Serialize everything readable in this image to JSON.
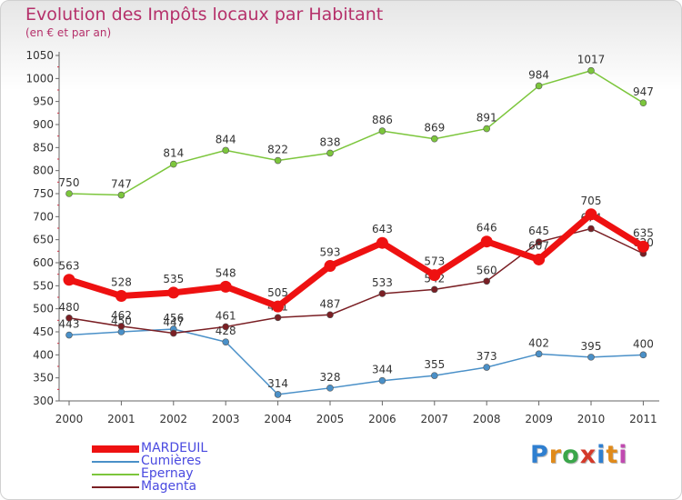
{
  "header": {
    "title": "Evolution des Impôts locaux par Habitant",
    "subtitle": "(en € et par an)"
  },
  "logo": {
    "text": "Proxiti",
    "colors": [
      "#2f7fd0",
      "#e08a1a",
      "#3aa64a",
      "#d43a2a",
      "#2f7fd0",
      "#e08a1a",
      "#c04ab0"
    ]
  },
  "chart_data": {
    "type": "line",
    "x": [
      "2000",
      "2001",
      "2002",
      "2003",
      "2004",
      "2005",
      "2006",
      "2007",
      "2008",
      "2009",
      "2010",
      "2011"
    ],
    "ylim": [
      300,
      1050
    ],
    "yticks": [
      300,
      350,
      400,
      450,
      500,
      550,
      600,
      650,
      700,
      750,
      800,
      850,
      900,
      950,
      1000,
      1050
    ],
    "grid": false,
    "legend_position": "bottom-left",
    "series": [
      {
        "name": "MARDEUIL",
        "color": "#ee1111",
        "emphasis": true,
        "values": [
          563,
          528,
          535,
          548,
          505,
          593,
          643,
          573,
          646,
          607,
          705,
          635
        ]
      },
      {
        "name": "Cumières",
        "color": "#4a90c8",
        "values": [
          443,
          450,
          456,
          428,
          314,
          328,
          344,
          355,
          373,
          402,
          395,
          400
        ]
      },
      {
        "name": "Epernay",
        "color": "#7cc63c",
        "values": [
          750,
          747,
          814,
          844,
          822,
          838,
          886,
          869,
          891,
          984,
          1017,
          947
        ]
      },
      {
        "name": "Magenta",
        "color": "#7a1f24",
        "values": [
          480,
          462,
          447,
          461,
          481,
          487,
          533,
          542,
          560,
          645,
          674,
          620
        ]
      }
    ]
  }
}
